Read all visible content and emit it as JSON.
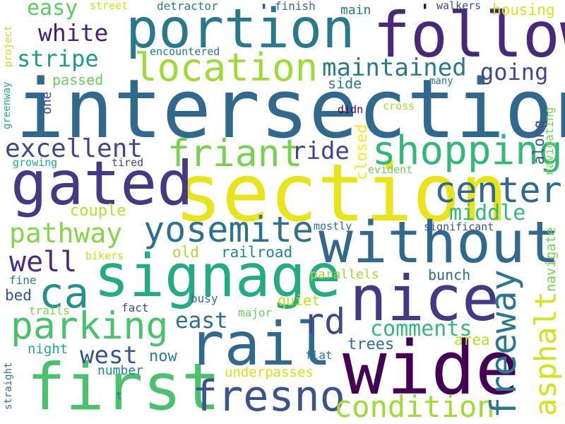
{
  "words": [
    {
      "text": "intersection",
      "color": "#31688e",
      "orientation": "horizontal"
    },
    {
      "text": "section",
      "color": "#e7e419",
      "orientation": "horizontal"
    },
    {
      "text": "follow",
      "color": "#482878",
      "orientation": "horizontal"
    },
    {
      "text": "portion",
      "color": "#2a788e",
      "orientation": "horizontal"
    },
    {
      "text": "wide",
      "color": "#440154",
      "orientation": "horizontal"
    },
    {
      "text": "signage",
      "color": "#25ab82",
      "orientation": "horizontal"
    },
    {
      "text": "without",
      "color": "#31688e",
      "orientation": "horizontal"
    },
    {
      "text": "gated",
      "color": "#443a83",
      "orientation": "horizontal"
    },
    {
      "text": "nice",
      "color": "#443a83",
      "orientation": "horizontal"
    },
    {
      "text": "first",
      "color": "#4ac16d",
      "orientation": "horizontal"
    },
    {
      "text": "rail",
      "color": "#31688e",
      "orientation": "horizontal"
    },
    {
      "text": "location",
      "color": "#a0da39",
      "orientation": "horizontal"
    },
    {
      "text": "fresno",
      "color": "#3b528b",
      "orientation": "horizontal"
    },
    {
      "text": "shopping",
      "color": "#35b779",
      "orientation": "horizontal"
    },
    {
      "text": "friant",
      "color": "#7ad151",
      "orientation": "horizontal"
    },
    {
      "text": "yosemite",
      "color": "#2c728e",
      "orientation": "horizontal"
    },
    {
      "text": "parking",
      "color": "#4ac16d",
      "orientation": "horizontal"
    },
    {
      "text": "condition",
      "color": "#a0da39",
      "orientation": "horizontal"
    },
    {
      "text": "freeway",
      "color": "#2a788e",
      "orientation": "vertical"
    },
    {
      "text": "center",
      "color": "#30698e",
      "orientation": "horizontal"
    },
    {
      "text": "ca",
      "color": "#21918c",
      "orientation": "horizontal"
    },
    {
      "text": "rd",
      "color": "#3e4989",
      "orientation": "horizontal"
    },
    {
      "text": "asphalt",
      "color": "#d2e21b",
      "orientation": "vertical"
    },
    {
      "text": "pathway",
      "color": "#86d549",
      "orientation": "horizontal"
    },
    {
      "text": "excellent",
      "color": "#404688",
      "orientation": "horizontal"
    },
    {
      "text": "maintained",
      "color": "#2a788e",
      "orientation": "horizontal"
    },
    {
      "text": "well",
      "color": "#472d7b",
      "orientation": "horizontal"
    },
    {
      "text": "comments",
      "color": "#35b779",
      "orientation": "horizontal"
    },
    {
      "text": "middle",
      "color": "#35b779",
      "orientation": "horizontal"
    },
    {
      "text": "east",
      "color": "#2e6e8e",
      "orientation": "horizontal"
    },
    {
      "text": "going",
      "color": "#3e4989",
      "orientation": "horizontal"
    },
    {
      "text": "stripe",
      "color": "#1f9a8a",
      "orientation": "horizontal"
    },
    {
      "text": "white",
      "color": "#481f70",
      "orientation": "horizontal"
    },
    {
      "text": "west",
      "color": "#3b528b",
      "orientation": "horizontal"
    },
    {
      "text": "ride",
      "color": "#414487",
      "orientation": "horizontal"
    },
    {
      "text": "easy",
      "color": "#5ec962",
      "orientation": "horizontal"
    },
    {
      "text": "trees",
      "color": "#2c728e",
      "orientation": "horizontal"
    },
    {
      "text": "now",
      "color": "#287d8e",
      "orientation": "horizontal"
    },
    {
      "text": "couple",
      "color": "#b5de2b",
      "orientation": "horizontal"
    },
    {
      "text": "old",
      "color": "#addc30",
      "orientation": "horizontal"
    },
    {
      "text": "railroad",
      "color": "#25848e",
      "orientation": "horizontal"
    },
    {
      "text": "quiet",
      "color": "#c2df23",
      "orientation": "horizontal"
    },
    {
      "text": "underpasses",
      "color": "#d2e21b",
      "orientation": "horizontal"
    },
    {
      "text": "area",
      "color": "#b8de29",
      "orientation": "horizontal"
    },
    {
      "text": "bunch",
      "color": "#30698e",
      "orientation": "horizontal"
    },
    {
      "text": "side",
      "color": "#2a788e",
      "orientation": "horizontal"
    },
    {
      "text": "passed",
      "color": "#6ccd5a",
      "orientation": "horizontal"
    },
    {
      "text": "housing",
      "color": "#d8e219",
      "orientation": "horizontal"
    },
    {
      "text": "main",
      "color": "#2a788e",
      "orientation": "horizontal"
    },
    {
      "text": "closed",
      "color": "#fde725",
      "orientation": "vertical"
    },
    {
      "text": "along",
      "color": "#3b528b",
      "orientation": "vertical"
    },
    {
      "text": "navigate",
      "color": "#73d056",
      "orientation": "vertical"
    },
    {
      "text": "navigating",
      "color": "#7ad151",
      "orientation": "vertical"
    },
    {
      "text": "night",
      "color": "#22a884",
      "orientation": "horizontal"
    },
    {
      "text": "number",
      "color": "#26828e",
      "orientation": "horizontal"
    },
    {
      "text": "parallels",
      "color": "#a0da39",
      "orientation": "horizontal"
    },
    {
      "text": "bed",
      "color": "#3b528b",
      "orientation": "horizontal"
    },
    {
      "text": "fine",
      "color": "#287d8e",
      "orientation": "horizontal"
    },
    {
      "text": "busy",
      "color": "#2f6c8e",
      "orientation": "horizontal"
    },
    {
      "text": "major",
      "color": "#6ece58",
      "orientation": "horizontal"
    },
    {
      "text": "flat",
      "color": "#2c728e",
      "orientation": "horizontal"
    },
    {
      "text": "fact",
      "color": "#3e4a89",
      "orientation": "horizontal"
    },
    {
      "text": "trails",
      "color": "#80d34a",
      "orientation": "horizontal"
    },
    {
      "text": "bikers",
      "color": "#c5e021",
      "orientation": "horizontal"
    },
    {
      "text": "mostly",
      "color": "#2e6e8e",
      "orientation": "horizontal"
    },
    {
      "text": "significant",
      "color": "#3b528b",
      "orientation": "horizontal"
    },
    {
      "text": "evident",
      "color": "#73d056",
      "orientation": "horizontal"
    },
    {
      "text": "cross",
      "color": "#a5db36",
      "orientation": "horizontal"
    },
    {
      "text": "didn",
      "color": "#440154",
      "orientation": "horizontal"
    },
    {
      "text": "many",
      "color": "#2a788e",
      "orientation": "horizontal"
    },
    {
      "text": "encountered",
      "color": "#2a788e",
      "orientation": "horizontal"
    },
    {
      "text": "street",
      "color": "#d2e21b",
      "orientation": "horizontal"
    },
    {
      "text": "detractor",
      "color": "#287d8e",
      "orientation": "horizontal"
    },
    {
      "text": "finish",
      "color": "#2f6c8e",
      "orientation": "horizontal"
    },
    {
      "text": "walkers",
      "color": "#3e4a89",
      "orientation": "horizontal"
    },
    {
      "text": "tired",
      "color": "#3e4a89",
      "orientation": "horizontal"
    },
    {
      "text": "growing",
      "color": "#25ab82",
      "orientation": "horizontal"
    },
    {
      "text": "one",
      "color": "#3e4989",
      "orientation": "vertical"
    },
    {
      "text": "project",
      "color": "#c2df23",
      "orientation": "vertical"
    },
    {
      "text": "greenway",
      "color": "#22a884",
      "orientation": "vertical"
    },
    {
      "text": "straight",
      "color": "#2c728e",
      "orientation": "vertical"
    },
    {
      "text": "t",
      "color": "#2c728e",
      "orientation": "horizontal"
    }
  ]
}
